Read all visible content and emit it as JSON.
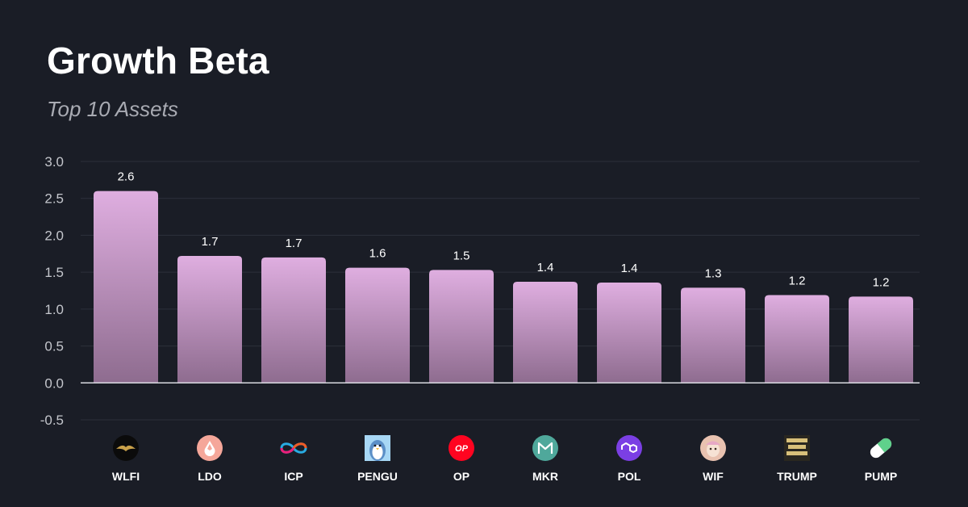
{
  "header": {
    "title": "Growth Beta",
    "subtitle": "Top 10 Assets"
  },
  "chart_data": {
    "type": "bar",
    "categories": [
      "WLFI",
      "LDO",
      "ICP",
      "PENGU",
      "OP",
      "MKR",
      "POL",
      "WIF",
      "TRUMP",
      "PUMP"
    ],
    "values": [
      2.6,
      1.7,
      1.7,
      1.6,
      1.5,
      1.4,
      1.4,
      1.3,
      1.2,
      1.2
    ],
    "data_labels": [
      "2.6",
      "1.7",
      "1.7",
      "1.6",
      "1.5",
      "1.4",
      "1.4",
      "1.3",
      "1.2",
      "1.2"
    ],
    "bar_heights": [
      2.6,
      1.72,
      1.7,
      1.56,
      1.53,
      1.37,
      1.36,
      1.29,
      1.19,
      1.17
    ],
    "ylim": [
      -0.5,
      3.0
    ],
    "yticks": [
      "3.0",
      "2.5",
      "2.0",
      "1.5",
      "1.0",
      "0.5",
      "0.0",
      "-0.5"
    ],
    "ytick_values": [
      3.0,
      2.5,
      2.0,
      1.5,
      1.0,
      0.5,
      0.0,
      -0.5
    ],
    "grid": true,
    "title": "Growth Beta",
    "subtitle": "Top 10 Assets",
    "xlabel": "",
    "ylabel": "",
    "colors": {
      "bar_top": "#dfaee0",
      "bar_bottom": "#8e6c8f",
      "grid": "#2c303b",
      "baseline": "#d8dae0",
      "background": "#1a1d26"
    },
    "icons": [
      "wlfi-eagle-icon",
      "ldo-drop-icon",
      "icp-infinity-icon",
      "pengu-penguin-icon",
      "op-logo-icon",
      "mkr-logo-icon",
      "pol-logo-icon",
      "wif-dog-icon",
      "trump-logo-icon",
      "pump-pill-icon"
    ]
  }
}
